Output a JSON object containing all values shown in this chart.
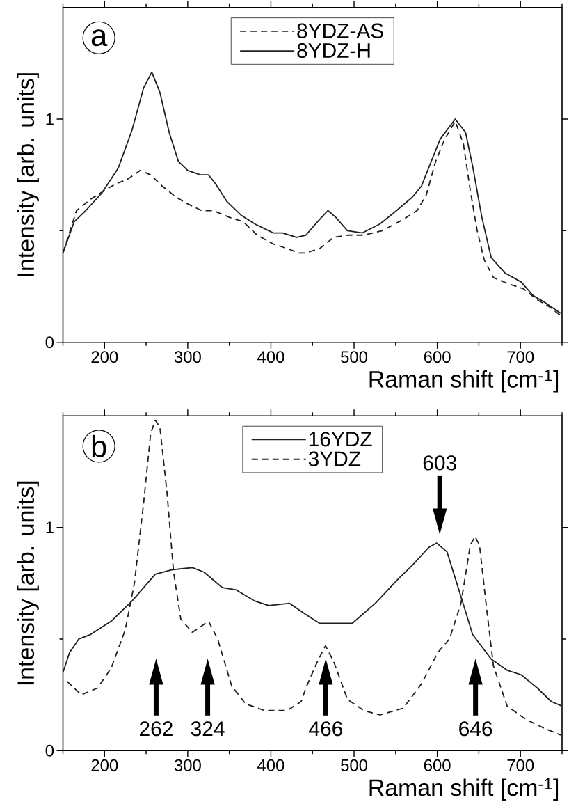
{
  "chart_data": [
    {
      "type": "line",
      "title": "a",
      "xlabel": "Raman shift [cm$^{-1}$]",
      "ylabel": "Intensity [arb. units]",
      "xlim": [
        150,
        750
      ],
      "ylim": [
        0,
        1.5
      ],
      "xticks": [
        {
          "value": 150,
          "label": null
        },
        200,
        {
          "value": 250,
          "label": null
        },
        300,
        {
          "value": 350,
          "label": null
        },
        400,
        {
          "value": 450,
          "label": null
        },
        500,
        {
          "value": 550,
          "label": null
        },
        600,
        {
          "value": 650,
          "label": null
        },
        700,
        {
          "value": 750,
          "label": null
        }
      ],
      "yticks": [
        0,
        {
          "value": 0.5,
          "label": null
        },
        1
      ],
      "legend": "top",
      "marker": "none",
      "series": [
        {
          "name": "8YDZ-AS",
          "color": "#231f20",
          "line_style": "dashed",
          "x": [
            150,
            166.3,
            183,
            199.7,
            213.7,
            227.5,
            242.9,
            255.4,
            269.3,
            286,
            300,
            316.7,
            330.6,
            350,
            366.8,
            383.5,
            403,
            419.7,
            433.6,
            442,
            458.7,
            475.4,
            492,
            511.6,
            533.9,
            559,
            575.7,
            586.8,
            598,
            609,
            621.6,
            631.4,
            639.7,
            648,
            656.4,
            667.5,
            687,
            703.7,
            720.4,
            734.4,
            748.3
          ],
          "values": [
            0.4,
            0.59,
            0.64,
            0.68,
            0.71,
            0.73,
            0.77,
            0.75,
            0.7,
            0.65,
            0.62,
            0.59,
            0.59,
            0.56,
            0.54,
            0.48,
            0.44,
            0.42,
            0.4,
            0.4,
            0.42,
            0.47,
            0.48,
            0.48,
            0.5,
            0.55,
            0.59,
            0.66,
            0.81,
            0.91,
            0.99,
            0.89,
            0.68,
            0.5,
            0.37,
            0.29,
            0.26,
            0.24,
            0.19,
            0.16,
            0.12
          ]
        },
        {
          "name": "8YDZ-H",
          "color": "#231f20",
          "line_style": "solid",
          "x": [
            150,
            163.5,
            177.4,
            197,
            216.4,
            233,
            247,
            256.8,
            266.5,
            277.7,
            288.8,
            300,
            315.2,
            325,
            333.4,
            347.3,
            364,
            380.7,
            403,
            414,
            430.9,
            442,
            456,
            468.5,
            478,
            492,
            510,
            531,
            547.8,
            570,
            581,
            593.8,
            603.5,
            621.6,
            634,
            642.5,
            653.6,
            664.8,
            681.5,
            701,
            715,
            728.8,
            748.3
          ],
          "values": [
            0.4,
            0.54,
            0.59,
            0.67,
            0.78,
            0.95,
            1.14,
            1.21,
            1.12,
            0.94,
            0.81,
            0.77,
            0.75,
            0.75,
            0.71,
            0.63,
            0.57,
            0.53,
            0.49,
            0.49,
            0.47,
            0.48,
            0.54,
            0.59,
            0.56,
            0.5,
            0.49,
            0.53,
            0.58,
            0.65,
            0.7,
            0.82,
            0.91,
            1.0,
            0.94,
            0.79,
            0.56,
            0.38,
            0.31,
            0.27,
            0.21,
            0.18,
            0.13
          ]
        }
      ]
    },
    {
      "type": "line",
      "title": "b",
      "xlabel": "Raman shift [cm$^{-1}$]",
      "ylabel": "Intensity [arb. units]",
      "xlim": [
        150,
        750
      ],
      "ylim": [
        0,
        1.5
      ],
      "xticks": [
        {
          "value": 150,
          "label": null
        },
        200,
        {
          "value": 250,
          "label": null
        },
        300,
        {
          "value": 350,
          "label": null
        },
        400,
        {
          "value": 450,
          "label": null
        },
        500,
        {
          "value": 550,
          "label": null
        },
        600,
        {
          "value": 650,
          "label": null
        },
        700,
        {
          "value": 750,
          "label": null
        }
      ],
      "yticks": [
        0,
        {
          "value": 0.5,
          "label": null
        },
        1
      ],
      "legend": "top",
      "marker": "none",
      "annotations": [
        {
          "text": "262",
          "x": 262
        },
        {
          "text": "324",
          "x": 324
        },
        {
          "text": "466",
          "x": 466
        },
        {
          "text": "646",
          "x": 646
        },
        {
          "text": "603",
          "x": 603
        }
      ],
      "series": [
        {
          "name": "16YDZ",
          "color": "#231f20",
          "line_style": "solid",
          "x": [
            150,
            158,
            169,
            183,
            208,
            233,
            261,
            280.5,
            305.6,
            319.4,
            341.7,
            358.4,
            380.7,
            397.4,
            422.5,
            442,
            458.7,
            478,
            497.7,
            525.5,
            553.3,
            570,
            589.6,
            599.3,
            611.8,
            628.5,
            642.5,
            664.8,
            684,
            700.8,
            720.4,
            737,
            749.7
          ],
          "values": [
            0.35,
            0.44,
            0.5,
            0.52,
            0.58,
            0.67,
            0.79,
            0.81,
            0.82,
            0.8,
            0.73,
            0.72,
            0.67,
            0.65,
            0.66,
            0.61,
            0.57,
            0.57,
            0.57,
            0.66,
            0.77,
            0.83,
            0.91,
            0.93,
            0.89,
            0.69,
            0.52,
            0.41,
            0.36,
            0.34,
            0.28,
            0.22,
            0.2
          ]
        },
        {
          "name": "3YDZ",
          "color": "#231f20",
          "line_style": "dashed",
          "x": [
            155,
            172,
            191.4,
            208,
            224.8,
            235.9,
            247,
            255.4,
            261,
            266.5,
            275,
            283,
            291.6,
            305.6,
            325,
            336,
            352.8,
            369.5,
            391.9,
            419.7,
            436.4,
            442,
            456,
            465.6,
            475.4,
            492,
            511.6,
            531,
            559,
            581.2,
            600.7,
            614.7,
            628.5,
            639.7,
            645.3,
            650.8,
            659.2,
            667.5,
            684,
            706.5,
            728.8,
            748.3
          ],
          "values": [
            0.31,
            0.25,
            0.28,
            0.37,
            0.54,
            0.75,
            1.11,
            1.42,
            1.48,
            1.45,
            1.16,
            0.8,
            0.59,
            0.53,
            0.58,
            0.5,
            0.29,
            0.21,
            0.18,
            0.18,
            0.22,
            0.28,
            0.4,
            0.47,
            0.4,
            0.23,
            0.18,
            0.16,
            0.19,
            0.3,
            0.44,
            0.5,
            0.66,
            0.92,
            0.96,
            0.92,
            0.64,
            0.38,
            0.2,
            0.14,
            0.1,
            0.07
          ]
        }
      ]
    }
  ]
}
